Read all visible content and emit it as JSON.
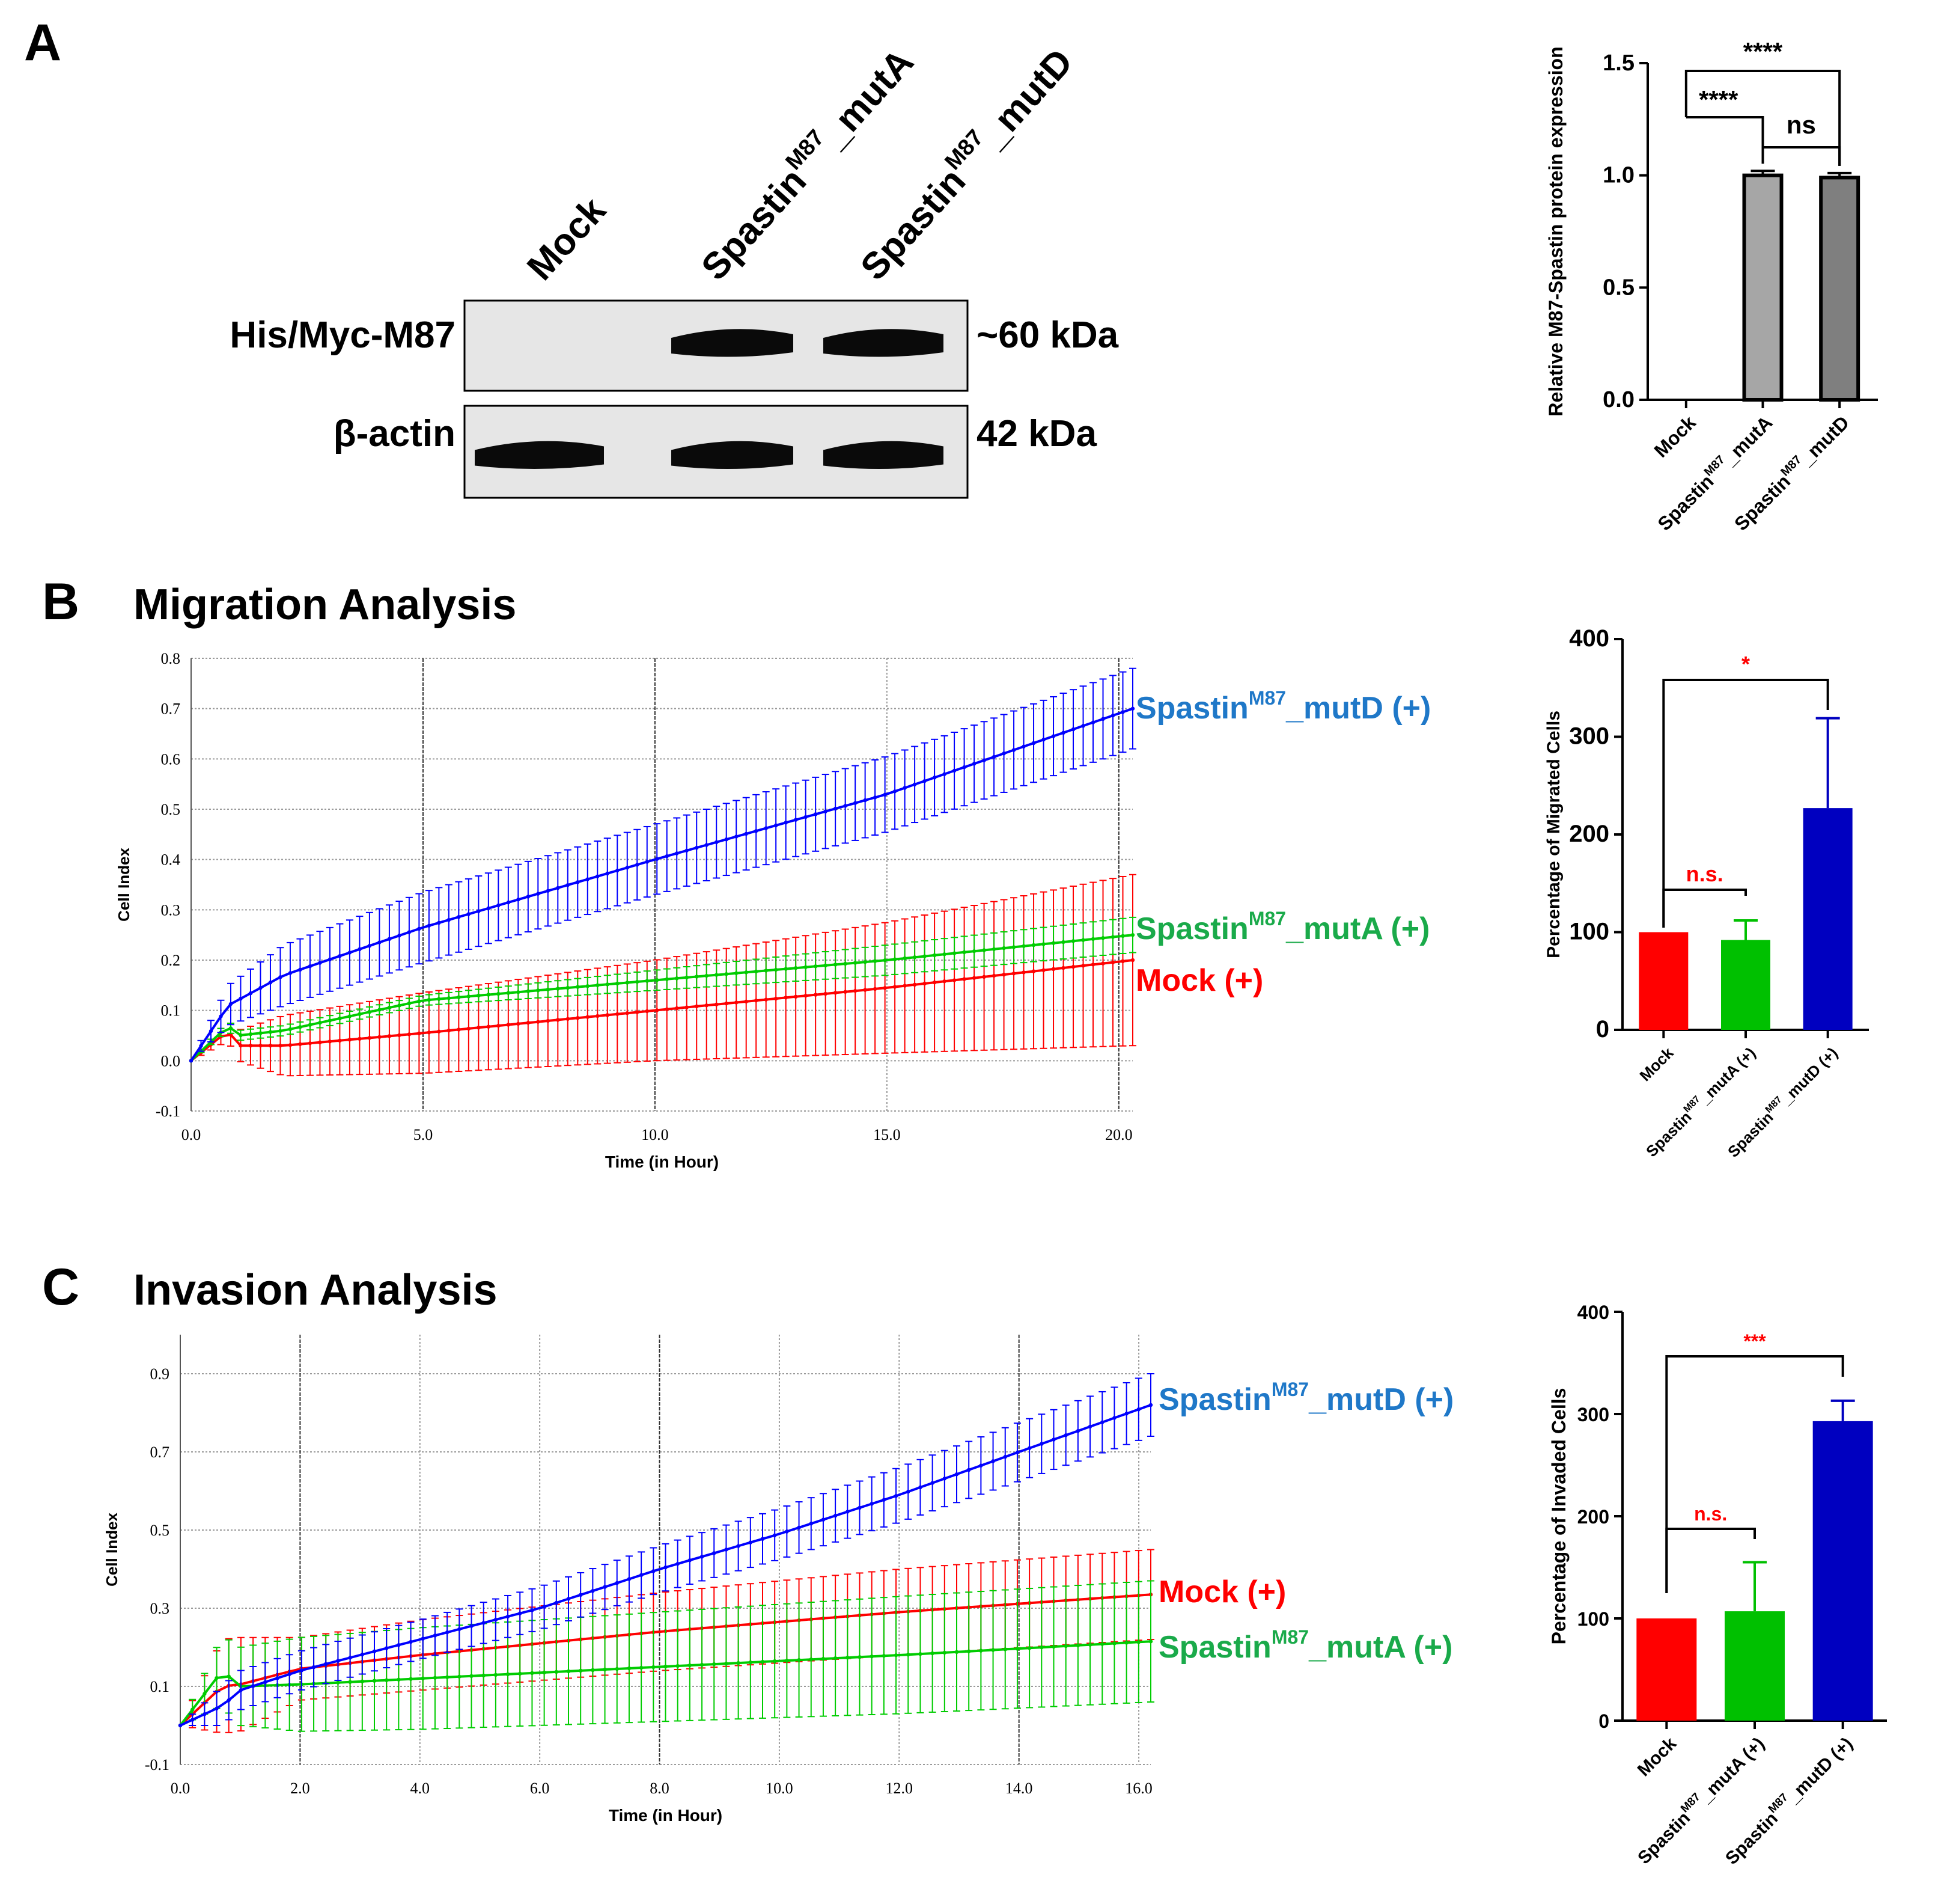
{
  "panels": {
    "A": {
      "letter": "A"
    },
    "B": {
      "letter": "B",
      "title": "Migration Analysis"
    },
    "C": {
      "letter": "C",
      "title": "Invasion Analysis"
    }
  },
  "blot": {
    "lanes": [
      {
        "base": "Mock",
        "sup": "",
        "suffix": ""
      },
      {
        "base": "Spastin",
        "sup": "M87",
        "suffix": "_mutA"
      },
      {
        "base": "Spastin",
        "sup": "M87",
        "suffix": "_mutD"
      }
    ],
    "rows": [
      {
        "label": "His/Myc-M87",
        "size": "~60 kDa",
        "bands": [
          0,
          1,
          1
        ]
      },
      {
        "label": "β-actin",
        "size": "42 kDa",
        "bands": [
          1,
          1,
          1
        ]
      }
    ]
  },
  "chart_data": [
    {
      "id": "A-bar",
      "type": "bar",
      "ylabel": "Relative M87-Spastin protein expression",
      "ylim": [
        0,
        1.5
      ],
      "yticks": [
        "0.0",
        "0.5",
        "1.0",
        "1.5"
      ],
      "categories": [
        {
          "base": "Mock",
          "sup": "",
          "suffix": ""
        },
        {
          "base": "Spastin",
          "sup": "M87",
          "suffix": "_mutA"
        },
        {
          "base": "Spastin",
          "sup": "M87",
          "suffix": "_mutD"
        }
      ],
      "values": [
        0,
        1.0,
        0.99
      ],
      "errors": [
        0,
        0.02,
        0.02
      ],
      "colors": [
        "#ffffff",
        "#a6a6a6",
        "#7f7f7f"
      ],
      "significance": [
        {
          "from": 0,
          "to": 1,
          "label": "****",
          "color": "#000000"
        },
        {
          "from": 1,
          "to": 2,
          "label": "ns",
          "color": "#000000"
        },
        {
          "from": 0,
          "to": 2,
          "label": "****",
          "color": "#000000"
        }
      ]
    },
    {
      "id": "B-line",
      "type": "line",
      "xlabel": "Time (in Hour)",
      "ylabel": "Cell Index",
      "xlim": [
        0,
        20.3
      ],
      "ylim": [
        -0.1,
        0.8
      ],
      "xticks": [
        "0.0",
        "5.0",
        "10.0",
        "15.0",
        "20.0"
      ],
      "yticks": [
        "-0.1",
        "0.0",
        "0.1",
        "0.2",
        "0.3",
        "0.4",
        "0.5",
        "0.6",
        "0.7",
        "0.8"
      ],
      "grid": true,
      "series": [
        {
          "name": "Mock (+)",
          "color": "#ff0000",
          "points": [
            [
              0,
              0
            ],
            [
              0.8,
              0.06
            ],
            [
              1.0,
              0.03
            ],
            [
              2.0,
              0.03
            ],
            [
              5.0,
              0.055
            ],
            [
              10.0,
              0.1
            ],
            [
              15.0,
              0.145
            ],
            [
              20.3,
              0.2
            ]
          ],
          "errors": [
            [
              0,
              0
            ],
            [
              0.8,
              0.02
            ],
            [
              1.0,
              0.03
            ],
            [
              2.0,
              0.06
            ],
            [
              5.0,
              0.08
            ],
            [
              10.0,
              0.1
            ],
            [
              15.0,
              0.13
            ],
            [
              20.3,
              0.17
            ]
          ]
        },
        {
          "name": "mutA (+)",
          "color": "#00cc00",
          "points": [
            [
              0,
              0
            ],
            [
              0.8,
              0.07
            ],
            [
              1.0,
              0.05
            ],
            [
              2.0,
              0.06
            ],
            [
              5.0,
              0.12
            ],
            [
              10.0,
              0.16
            ],
            [
              15.0,
              0.2
            ],
            [
              20.3,
              0.25
            ]
          ],
          "errors": [
            [
              0,
              0
            ],
            [
              0.8,
              0.01
            ],
            [
              1.0,
              0.01
            ],
            [
              2.0,
              0.01
            ],
            [
              5.0,
              0.01
            ],
            [
              10.0,
              0.02
            ],
            [
              15.0,
              0.03
            ],
            [
              20.3,
              0.035
            ]
          ]
        },
        {
          "name": "mutD (+)",
          "color": "#0000ff",
          "points": [
            [
              0,
              0
            ],
            [
              0.8,
              0.11
            ],
            [
              2.0,
              0.17
            ],
            [
              5.0,
              0.265
            ],
            [
              10.0,
              0.4
            ],
            [
              15.0,
              0.53
            ],
            [
              20.3,
              0.7
            ]
          ],
          "errors": [
            [
              0,
              0
            ],
            [
              0.8,
              0.04
            ],
            [
              2.0,
              0.06
            ],
            [
              5.0,
              0.07
            ],
            [
              10.0,
              0.07
            ],
            [
              15.0,
              0.075
            ],
            [
              20.3,
              0.08
            ]
          ]
        }
      ],
      "labels": [
        {
          "series": 2,
          "base": "Spastin",
          "sup": "M87",
          "suffix": "_mutD (+)",
          "color": "#1f78c8"
        },
        {
          "series": 1,
          "base": "Spastin",
          "sup": "M87",
          "suffix": "_mutA (+)",
          "color": "#1aaa4a"
        },
        {
          "series": 0,
          "base": "Mock (+)",
          "sup": "",
          "suffix": "",
          "color": "#ff0000"
        }
      ]
    },
    {
      "id": "B-bar",
      "type": "bar",
      "ylabel": "Percentage of Migrated Cells",
      "ylim": [
        0,
        400
      ],
      "yticks": [
        "0",
        "100",
        "200",
        "300",
        "400"
      ],
      "categories": [
        {
          "base": "Mock",
          "sup": "",
          "suffix": ""
        },
        {
          "base": "Spastin",
          "sup": "M87",
          "suffix": "_mutA (+)"
        },
        {
          "base": "Spastin",
          "sup": "M87",
          "suffix": "_mutD (+)"
        }
      ],
      "values": [
        100,
        92,
        227
      ],
      "errors": [
        0,
        20,
        92
      ],
      "colors": [
        "#ff0000",
        "#00c000",
        "#0000c0"
      ],
      "significance": [
        {
          "from": 0,
          "to": 1,
          "label": "n.s.",
          "color": "#ff0000"
        },
        {
          "from": 0,
          "to": 2,
          "label": "*",
          "color": "#ff0000"
        }
      ]
    },
    {
      "id": "C-line",
      "type": "line",
      "xlabel": "Time (in Hour)",
      "ylabel": "Cell Index",
      "xlim": [
        0,
        16.2
      ],
      "ylim": [
        -0.1,
        1.0
      ],
      "xticks": [
        "0.0",
        "2.0",
        "4.0",
        "6.0",
        "8.0",
        "10.0",
        "12.0",
        "14.0",
        "16.0"
      ],
      "yticks": [
        "-0.1",
        "0.1",
        "0.3",
        "0.5",
        "0.7",
        "0.9"
      ],
      "grid": true,
      "series": [
        {
          "name": "Mock (+)",
          "color": "#ff0000",
          "points": [
            [
              0,
              0
            ],
            [
              0.7,
              0.1
            ],
            [
              1.0,
              0.105
            ],
            [
              2.0,
              0.145
            ],
            [
              4.0,
              0.18
            ],
            [
              8.0,
              0.24
            ],
            [
              12.0,
              0.29
            ],
            [
              16.2,
              0.335
            ]
          ],
          "errors": [
            [
              0,
              0
            ],
            [
              0.7,
              0.12
            ],
            [
              1.0,
              0.12
            ],
            [
              2.0,
              0.08
            ],
            [
              4.0,
              0.09
            ],
            [
              8.0,
              0.1
            ],
            [
              12.0,
              0.11
            ],
            [
              16.2,
              0.115
            ]
          ]
        },
        {
          "name": "mutA (+)",
          "color": "#00cc00",
          "points": [
            [
              0,
              0
            ],
            [
              0.7,
              0.14
            ],
            [
              1.0,
              0.1
            ],
            [
              2.0,
              0.105
            ],
            [
              4.0,
              0.12
            ],
            [
              8.0,
              0.15
            ],
            [
              12.0,
              0.18
            ],
            [
              16.2,
              0.215
            ]
          ],
          "errors": [
            [
              0,
              0
            ],
            [
              0.7,
              0.09
            ],
            [
              1.0,
              0.1
            ],
            [
              2.0,
              0.12
            ],
            [
              4.0,
              0.13
            ],
            [
              8.0,
              0.14
            ],
            [
              12.0,
              0.15
            ],
            [
              16.2,
              0.155
            ]
          ]
        },
        {
          "name": "mutD (+)",
          "color": "#0000ff",
          "points": [
            [
              0,
              0
            ],
            [
              0.7,
              0.05
            ],
            [
              1.0,
              0.09
            ],
            [
              2.0,
              0.14
            ],
            [
              4.0,
              0.22
            ],
            [
              6.0,
              0.3
            ],
            [
              8.0,
              0.4
            ],
            [
              10.0,
              0.49
            ],
            [
              12.0,
              0.59
            ],
            [
              14.0,
              0.7
            ],
            [
              16.2,
              0.82
            ]
          ],
          "errors": [
            [
              0,
              0
            ],
            [
              0.7,
              0.05
            ],
            [
              1.0,
              0.05
            ],
            [
              2.0,
              0.05
            ],
            [
              4.0,
              0.05
            ],
            [
              6.0,
              0.055
            ],
            [
              8.0,
              0.06
            ],
            [
              10.0,
              0.065
            ],
            [
              12.0,
              0.07
            ],
            [
              14.0,
              0.075
            ],
            [
              16.2,
              0.08
            ]
          ]
        }
      ],
      "labels": [
        {
          "series": 2,
          "base": "Spastin",
          "sup": "M87",
          "suffix": "_mutD (+)",
          "color": "#1f78c8"
        },
        {
          "series": 0,
          "base": "Mock (+)",
          "sup": "",
          "suffix": "",
          "color": "#ff0000"
        },
        {
          "series": 1,
          "base": "Spastin",
          "sup": "M87",
          "suffix": "_mutA (+)",
          "color": "#1aaa4a"
        }
      ]
    },
    {
      "id": "C-bar",
      "type": "bar",
      "ylabel": "Percentage of Invaded Cells",
      "ylim": [
        0,
        400
      ],
      "yticks": [
        "0",
        "100",
        "200",
        "300",
        "400"
      ],
      "categories": [
        {
          "base": "Mock",
          "sup": "",
          "suffix": ""
        },
        {
          "base": "Spastin",
          "sup": "M87",
          "suffix": "_mutA (+)"
        },
        {
          "base": "Spastin",
          "sup": "M87",
          "suffix": "_mutD (+)"
        }
      ],
      "values": [
        100,
        107,
        293
      ],
      "errors": [
        0,
        48,
        20
      ],
      "colors": [
        "#ff0000",
        "#00c000",
        "#0000c0"
      ],
      "significance": [
        {
          "from": 0,
          "to": 1,
          "label": "n.s.",
          "color": "#ff0000"
        },
        {
          "from": 0,
          "to": 2,
          "label": "***",
          "color": "#ff0000"
        }
      ]
    }
  ]
}
